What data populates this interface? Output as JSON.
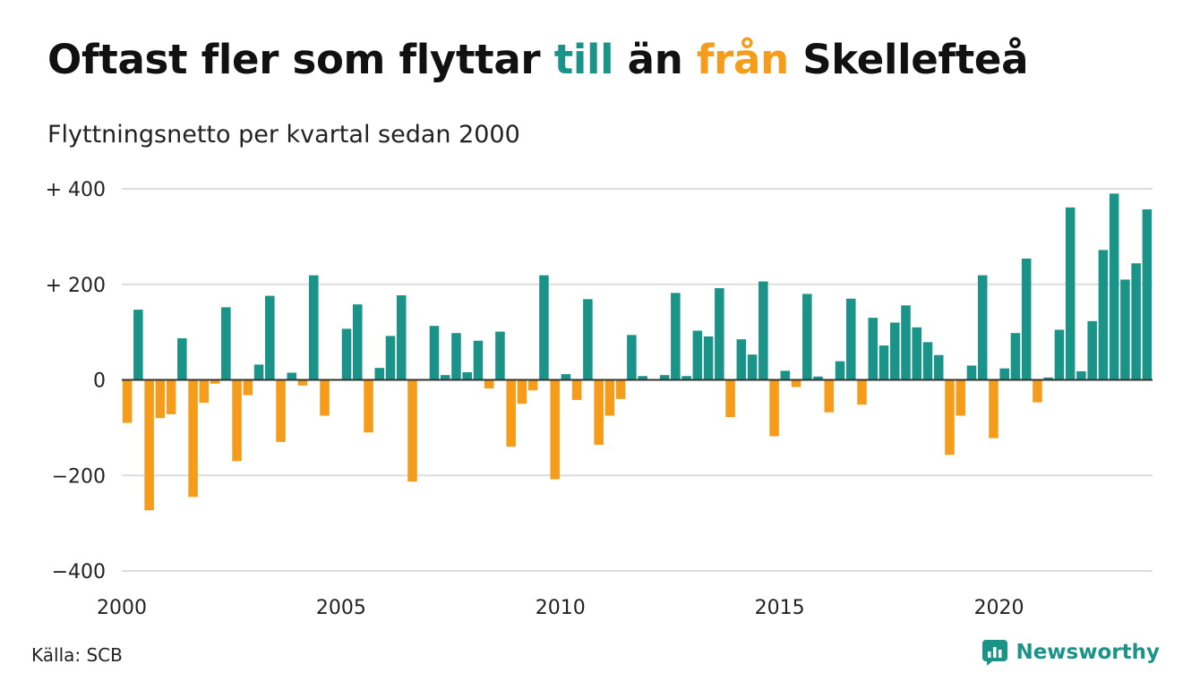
{
  "title": {
    "part1": "Oftast fler som flyttar ",
    "till": "till",
    "part2": " än ",
    "fran": "från",
    "part3": " Skellefteå"
  },
  "subtitle": "Flyttningsnetto per kvartal sedan 2000",
  "source": "Källa: SCB",
  "brand": {
    "name": "Newsworthy",
    "icon": "newsworthy-logo-icon"
  },
  "colors": {
    "positive": "#1a9488",
    "negative": "#f59c1b",
    "grid": "#dddddd",
    "zero": "#333333"
  },
  "chart_data": {
    "type": "bar",
    "title": "Oftast fler som flyttar till än från Skellefteå",
    "subtitle": "Flyttningsnetto per kvartal sedan 2000",
    "xlabel": "",
    "ylabel": "",
    "ylim": [
      -400,
      400
    ],
    "yticks": [
      400,
      200,
      0,
      -200,
      -400
    ],
    "ytick_labels": [
      "+ 400",
      "+ 200",
      "0",
      "−200",
      "−400"
    ],
    "x_start_year": 2000,
    "xticks": [
      2000,
      2005,
      2010,
      2015,
      2020
    ],
    "xtick_labels": [
      "2000",
      "2005",
      "2010",
      "2015",
      "2020"
    ],
    "grid": true,
    "legend": "none",
    "values": [
      -90,
      147,
      -273,
      -80,
      -72,
      87,
      -245,
      -48,
      -8,
      152,
      -170,
      -32,
      32,
      176,
      -130,
      15,
      -12,
      219,
      -75,
      0,
      107,
      158,
      -110,
      25,
      92,
      177,
      -213,
      0,
      113,
      10,
      98,
      16,
      82,
      -18,
      101,
      -140,
      -50,
      -22,
      219,
      -208,
      12,
      -42,
      169,
      -136,
      -75,
      -40,
      94,
      8,
      0,
      10,
      182,
      8,
      103,
      91,
      192,
      -78,
      85,
      53,
      206,
      -118,
      19,
      -15,
      180,
      7,
      -68,
      39,
      170,
      -52,
      130,
      72,
      120,
      156,
      110,
      79,
      52,
      -157,
      -75,
      30,
      219,
      -122,
      24,
      98,
      254,
      -47,
      5,
      105,
      361,
      18,
      123,
      272,
      390,
      210,
      244,
      357
    ]
  }
}
